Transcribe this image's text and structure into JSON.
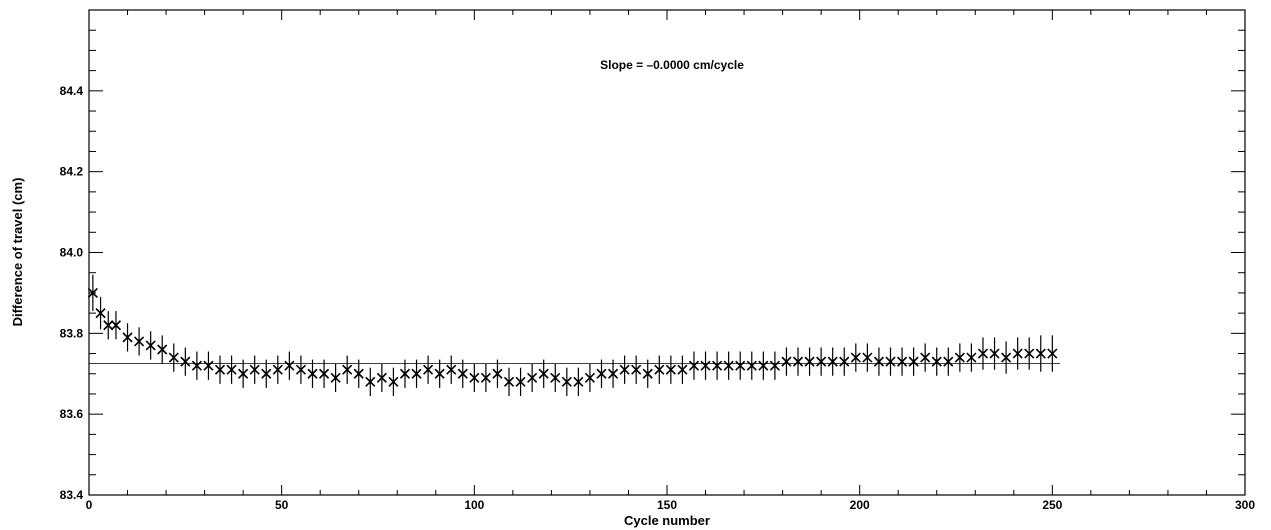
{
  "chart_data": {
    "type": "scatter",
    "title": "",
    "xlabel": "Cycle number",
    "ylabel": "Difference of travel (cm)",
    "xlim": [
      0,
      300
    ],
    "ylim": [
      83.4,
      84.6
    ],
    "xticks": [
      0,
      50,
      100,
      150,
      200,
      250,
      300
    ],
    "yticks": [
      83.4,
      83.6,
      83.8,
      84.0,
      84.2,
      84.4
    ],
    "grid": false,
    "marker": "x",
    "annotation": "Slope = –0.0000 cm/cycle",
    "fit_line": {
      "slope": 0.0,
      "intercept": 83.725,
      "x_range": [
        0,
        252
      ]
    },
    "series": [
      {
        "x": [
          1,
          3,
          5,
          7,
          10,
          13,
          16,
          19,
          22,
          25,
          28,
          31,
          34,
          37,
          40,
          43,
          46,
          49,
          52,
          55,
          58,
          61,
          64,
          67,
          70,
          73,
          76,
          79,
          82,
          85,
          88,
          91,
          94,
          97,
          100,
          103,
          106,
          109,
          112,
          115,
          118,
          121,
          124,
          127,
          130,
          133,
          136,
          139,
          142,
          145,
          148,
          151,
          154,
          157,
          160,
          163,
          166,
          169,
          172,
          175,
          178,
          181,
          184,
          187,
          190,
          193,
          196,
          199,
          202,
          205,
          208,
          211,
          214,
          217,
          220,
          223,
          226,
          229,
          232,
          235,
          238,
          241,
          244,
          247,
          250
        ],
        "y": [
          83.9,
          83.85,
          83.82,
          83.82,
          83.79,
          83.78,
          83.77,
          83.76,
          83.74,
          83.73,
          83.72,
          83.72,
          83.71,
          83.71,
          83.7,
          83.71,
          83.7,
          83.71,
          83.72,
          83.71,
          83.7,
          83.7,
          83.69,
          83.71,
          83.7,
          83.68,
          83.69,
          83.68,
          83.7,
          83.7,
          83.71,
          83.7,
          83.71,
          83.7,
          83.69,
          83.69,
          83.7,
          83.68,
          83.68,
          83.69,
          83.7,
          83.69,
          83.68,
          83.68,
          83.69,
          83.7,
          83.7,
          83.71,
          83.71,
          83.7,
          83.71,
          83.71,
          83.71,
          83.72,
          83.72,
          83.72,
          83.72,
          83.72,
          83.72,
          83.72,
          83.72,
          83.73,
          83.73,
          83.73,
          83.73,
          83.73,
          83.73,
          83.74,
          83.74,
          83.73,
          83.73,
          83.73,
          83.73,
          83.74,
          83.73,
          83.73,
          83.74,
          83.74,
          83.75,
          83.75,
          83.74,
          83.75,
          83.75,
          83.75,
          83.75
        ],
        "err": [
          0.045,
          0.04,
          0.035,
          0.035,
          0.035,
          0.035,
          0.035,
          0.035,
          0.035,
          0.035,
          0.035,
          0.035,
          0.035,
          0.035,
          0.035,
          0.035,
          0.035,
          0.035,
          0.035,
          0.035,
          0.035,
          0.035,
          0.035,
          0.035,
          0.035,
          0.035,
          0.035,
          0.035,
          0.035,
          0.035,
          0.035,
          0.035,
          0.035,
          0.035,
          0.035,
          0.035,
          0.035,
          0.035,
          0.035,
          0.035,
          0.035,
          0.035,
          0.035,
          0.035,
          0.035,
          0.035,
          0.035,
          0.035,
          0.035,
          0.035,
          0.035,
          0.035,
          0.035,
          0.035,
          0.035,
          0.035,
          0.035,
          0.035,
          0.035,
          0.035,
          0.035,
          0.035,
          0.035,
          0.035,
          0.035,
          0.035,
          0.035,
          0.035,
          0.035,
          0.035,
          0.035,
          0.035,
          0.035,
          0.035,
          0.035,
          0.035,
          0.035,
          0.035,
          0.04,
          0.04,
          0.04,
          0.04,
          0.04,
          0.045,
          0.045
        ]
      }
    ]
  }
}
